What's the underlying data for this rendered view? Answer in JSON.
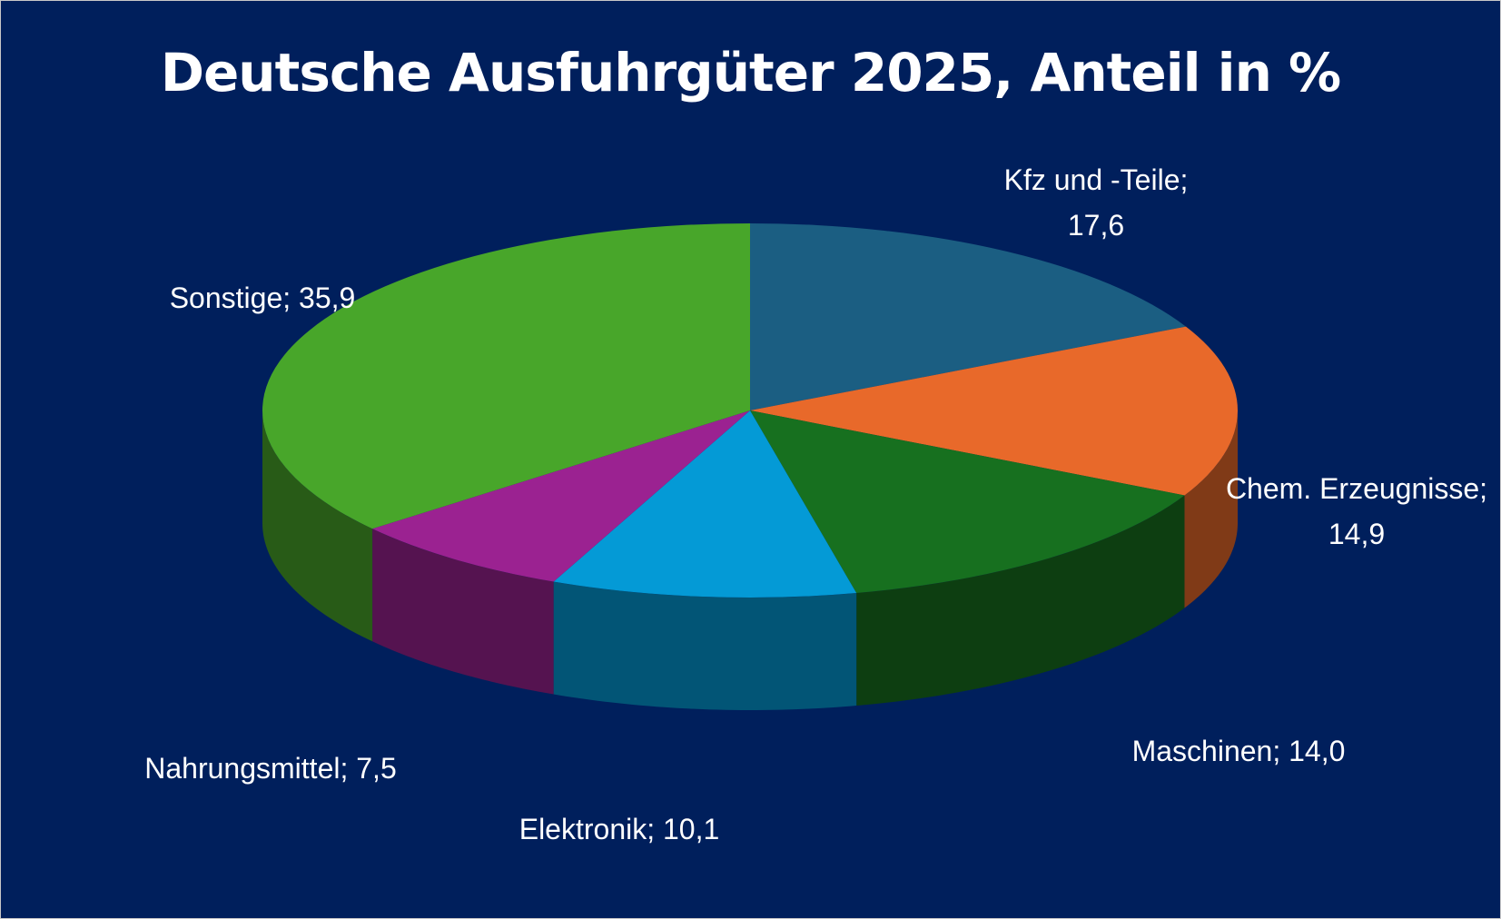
{
  "chart_data": {
    "type": "pie3d",
    "title": "Deutsche Ausfuhrgüter 2025, Anteil in %",
    "categories": [
      "Kfz und -Teile",
      "Chem. Erzeugnisse",
      "Maschinen",
      "Elektronik",
      "Nahrungsmittel",
      "Sonstige"
    ],
    "values": [
      17.6,
      14.9,
      14.0,
      10.1,
      7.5,
      35.9
    ],
    "value_labels": [
      "17,6",
      "14,9",
      "14,0",
      "10,1",
      "7,5",
      "35,9"
    ],
    "label_separator": ";",
    "colors": [
      "#1b5e82",
      "#e8692a",
      "#17701f",
      "#049ad6",
      "#9b2291",
      "#48a62a"
    ]
  }
}
